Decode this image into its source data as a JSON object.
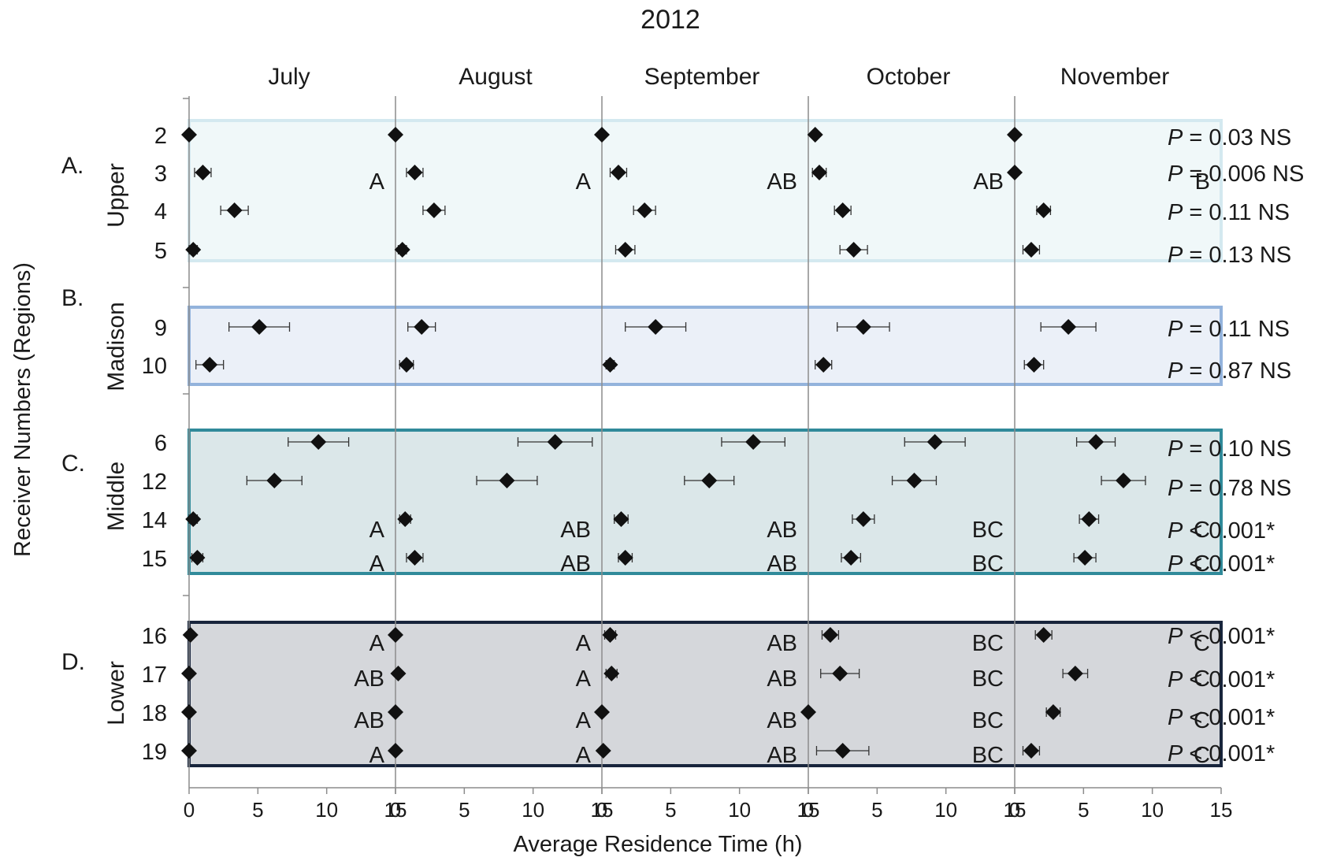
{
  "chart_data": {
    "type": "scatter",
    "title": "2012",
    "xlabel": "Average Residence Time (h)",
    "ylabel": "Receiver Numbers (Regions)",
    "xlim": [
      0,
      15
    ],
    "x_ticks": [
      0,
      5,
      10,
      15
    ],
    "months": [
      "July",
      "August",
      "September",
      "October",
      "November"
    ],
    "grid": false,
    "regions": [
      {
        "letter": "A.",
        "name": "Upper",
        "fill": "#f0f8f9",
        "stroke": "#d4e9f0",
        "receivers": [
          {
            "id": "2",
            "p": "= 0.03 NS",
            "values": [
              0.0,
              0.0,
              0.0,
              0.5,
              0.0
            ],
            "errors": [
              0,
              0,
              0,
              0,
              0
            ]
          },
          {
            "id": "3",
            "p": "= 0.006 NS",
            "values": [
              1.0,
              1.4,
              1.2,
              0.8,
              0.0
            ],
            "errors": [
              0.6,
              0.6,
              0.6,
              0.5,
              0
            ],
            "groups": [
              "A",
              "A",
              "AB",
              "AB",
              "B"
            ]
          },
          {
            "id": "4",
            "p": "= 0.11 NS",
            "values": [
              3.3,
              2.8,
              3.1,
              2.5,
              2.1
            ],
            "errors": [
              1.0,
              0.8,
              0.8,
              0.6,
              0.5
            ]
          },
          {
            "id": "5",
            "p": "= 0.13 NS",
            "values": [
              0.3,
              0.5,
              1.7,
              3.3,
              1.2
            ],
            "errors": [
              0.3,
              0.3,
              0.7,
              1.0,
              0.6
            ]
          }
        ]
      },
      {
        "letter": "B.",
        "name": "Madison",
        "fill": "#ebf0f8",
        "stroke": "#93b3dc",
        "receivers": [
          {
            "id": "9",
            "p": "= 0.11 NS",
            "values": [
              5.1,
              1.9,
              3.9,
              4.0,
              3.9
            ],
            "errors": [
              2.2,
              1.0,
              2.2,
              1.9,
              2.0
            ]
          },
          {
            "id": "10",
            "p": "= 0.87 NS",
            "values": [
              1.5,
              0.8,
              0.6,
              1.1,
              1.4
            ],
            "errors": [
              1.0,
              0.5,
              0.3,
              0.6,
              0.7
            ]
          }
        ]
      },
      {
        "letter": "C.",
        "name": "Middle",
        "fill": "#dbe7e9",
        "stroke": "#308a9a",
        "receivers": [
          {
            "id": "6",
            "p": "= 0.10 NS",
            "values": [
              9.4,
              11.6,
              11.0,
              9.2,
              5.9
            ],
            "errors": [
              2.2,
              2.7,
              2.3,
              2.2,
              1.4
            ]
          },
          {
            "id": "12",
            "p": "= 0.78 NS",
            "values": [
              6.2,
              8.1,
              7.8,
              7.7,
              7.9
            ],
            "errors": [
              2.0,
              2.2,
              1.8,
              1.6,
              1.6
            ]
          },
          {
            "id": "14",
            "p": "< 0.001*",
            "values": [
              0.3,
              0.7,
              1.4,
              4.0,
              5.4
            ],
            "errors": [
              0.3,
              0.4,
              0.5,
              0.8,
              0.7
            ],
            "groups": [
              "A",
              "AB",
              "AB",
              "BC",
              "C"
            ]
          },
          {
            "id": "15",
            "p": "< 0.001*",
            "values": [
              0.6,
              1.4,
              1.7,
              3.1,
              5.1
            ],
            "errors": [
              0.4,
              0.6,
              0.5,
              0.7,
              0.8
            ],
            "groups": [
              "A",
              "AB",
              "AB",
              "BC",
              "C"
            ]
          }
        ]
      },
      {
        "letter": "D.",
        "name": "Lower",
        "fill": "#d5d7db",
        "stroke": "#18253c",
        "receivers": [
          {
            "id": "16",
            "p": "< 0.001*",
            "values": [
              0.1,
              0.0,
              0.6,
              1.6,
              2.1
            ],
            "errors": [
              0,
              0,
              0.4,
              0.6,
              0.6
            ],
            "groups": [
              "A",
              "A",
              "AB",
              "BC",
              "C"
            ]
          },
          {
            "id": "17",
            "p": "< 0.001*",
            "values": [
              0.0,
              0.2,
              0.7,
              2.3,
              4.4
            ],
            "errors": [
              0,
              0,
              0.4,
              1.4,
              0.9
            ],
            "groups": [
              "AB",
              "A",
              "AB",
              "BC",
              "C"
            ]
          },
          {
            "id": "18",
            "p": "< 0.001*",
            "values": [
              0.0,
              0.0,
              0.0,
              0.0,
              2.8
            ],
            "errors": [
              0,
              0,
              0,
              0,
              0.5
            ],
            "groups": [
              "AB",
              "A",
              "AB",
              "BC",
              "C"
            ]
          },
          {
            "id": "19",
            "p": "< 0.001*",
            "values": [
              0.0,
              0.0,
              0.1,
              2.5,
              1.2
            ],
            "errors": [
              0,
              0,
              0,
              1.9,
              0.6
            ],
            "groups": [
              "A",
              "A",
              "AB",
              "BC",
              "C"
            ]
          }
        ]
      }
    ]
  }
}
